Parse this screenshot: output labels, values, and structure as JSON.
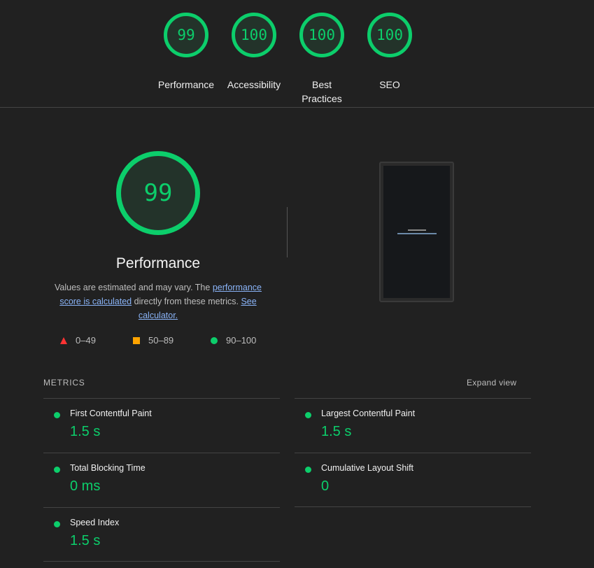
{
  "top_scores": [
    {
      "label": "Performance",
      "score": "99"
    },
    {
      "label": "Accessibility",
      "score": "100"
    },
    {
      "label": "Best Practices",
      "score": "100"
    },
    {
      "label": "SEO",
      "score": "100"
    }
  ],
  "main": {
    "score": "99",
    "title": "Performance",
    "desc_1": "Values are estimated and may vary. The ",
    "link_1": "performance score is calculated",
    "desc_2": " directly from these metrics. ",
    "link_2": "See calculator.",
    "legend": [
      {
        "icon": "triangle-icon",
        "range": "0–49",
        "color": "#ff3333"
      },
      {
        "icon": "square-icon",
        "range": "50–89",
        "color": "#ffa400"
      },
      {
        "icon": "circle-icon",
        "range": "90–100",
        "color": "#0cce6b"
      }
    ]
  },
  "metrics": {
    "heading": "METRICS",
    "expand": "Expand view",
    "items": [
      {
        "name": "First Contentful Paint",
        "value": "1.5 s"
      },
      {
        "name": "Largest Contentful Paint",
        "value": "1.5 s"
      },
      {
        "name": "Total Blocking Time",
        "value": "0 ms"
      },
      {
        "name": "Cumulative Layout Shift",
        "value": "0"
      },
      {
        "name": "Speed Index",
        "value": "1.5 s"
      }
    ]
  },
  "colors": {
    "pass": "#0cce6b",
    "background": "#212121",
    "link": "#8ab4f8"
  }
}
